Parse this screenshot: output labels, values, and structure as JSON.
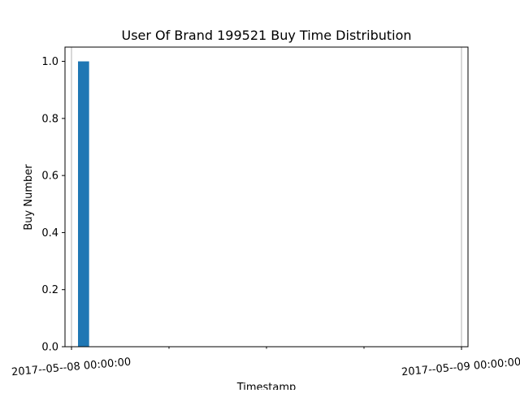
{
  "chart_data": {
    "type": "bar",
    "title": "User Of Brand 199521 Buy Time Distribution",
    "xlabel": "Timestamp",
    "ylabel": "Buy Number",
    "x_ticks": [
      "2017--05--08 00:00:00",
      "2017--05--09 00:00:00"
    ],
    "x_range": [
      "2017-05-07 23:36",
      "2017-05-09 00:24"
    ],
    "x_tick_positions": [
      "2017-05-08 00:00",
      "2017-05-09 00:00"
    ],
    "y_ticks": [
      "0.0",
      "0.2",
      "0.4",
      "0.6",
      "0.8",
      "1.0"
    ],
    "ylim": [
      0,
      1.05
    ],
    "bars": [
      {
        "start": "2017-05-08 00:24",
        "end": "2017-05-08 01:05",
        "value": 1
      }
    ],
    "bar_color": "#1f77b4",
    "vertical_reference_lines": [
      "2017-05-08 00:00",
      "2017-05-09 00:00"
    ],
    "grid": false,
    "legend": "none"
  }
}
